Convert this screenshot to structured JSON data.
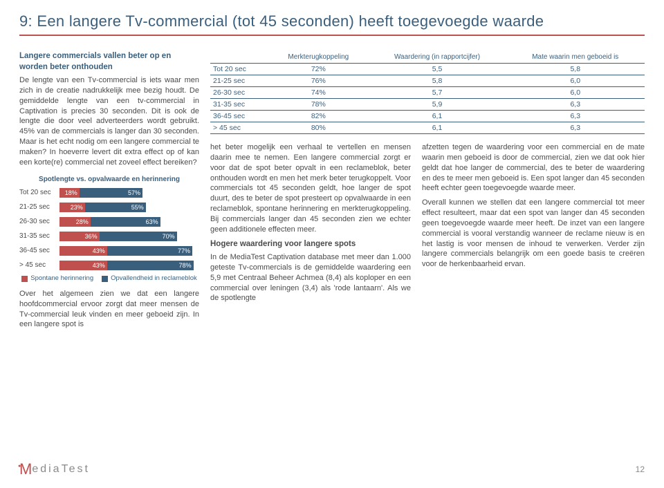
{
  "page": {
    "title": "9: Een langere Tv-commercial (tot 45 seconden) heeft toegevoegde waarde",
    "number": "12"
  },
  "logo": {
    "m": "M",
    "rest": "ediaTest"
  },
  "left": {
    "subhead": "Langere commercials vallen beter op en worden beter onthouden",
    "p1": "De lengte van een Tv-commercial is iets waar men zich in de creatie nadrukkelijk mee bezig houdt. De gemiddelde lengte van een tv-commercial in Captivation is precies 30 seconden. Dit is ook de lengte die door veel adverteerders wordt gebruikt. 45% van de commercials is langer dan 30 seconden. Maar is het echt nodig om een langere commercial te maken? In hoeverre levert dit extra effect op of kan een korte(re) commercial net zoveel effect bereiken?",
    "p2": "Over het algemeen zien we dat een langere hoofdcommercial ervoor zorgt dat meer mensen de Tv-commercial leuk vinden en meer geboeid zijn. In een langere spot is"
  },
  "chart": {
    "title": "Spotlengte vs. opvalwaarde en herinnering",
    "series1_color": "#c0504d",
    "series2_color": "#3a5f7d",
    "max": 100,
    "legend1": "Spontane herinnering",
    "legend2": "Opvallendheid in reclameblok",
    "rows": [
      {
        "cat": "Tot 20 sec",
        "v1": 18,
        "v2": 57
      },
      {
        "cat": "21-25 sec",
        "v1": 23,
        "v2": 55
      },
      {
        "cat": "26-30 sec",
        "v1": 28,
        "v2": 63
      },
      {
        "cat": "31-35 sec",
        "v1": 36,
        "v2": 70
      },
      {
        "cat": "36-45 sec",
        "v1": 43,
        "v2": 77
      },
      {
        "cat": "> 45 sec",
        "v1": 43,
        "v2": 78
      }
    ]
  },
  "table": {
    "headers": [
      "",
      "Merkterugkoppeling",
      "Waardering (in rapportcijfer)",
      "Mate waarin men geboeid is"
    ],
    "rows": [
      [
        "Tot 20 sec",
        "72%",
        "5,5",
        "5,8"
      ],
      [
        "21-25 sec",
        "76%",
        "5,8",
        "6,0"
      ],
      [
        "26-30 sec",
        "74%",
        "5,7",
        "6,0"
      ],
      [
        "31-35 sec",
        "78%",
        "5,9",
        "6,3"
      ],
      [
        "36-45 sec",
        "82%",
        "6,1",
        "6,3"
      ],
      [
        "> 45 sec",
        "80%",
        "6,1",
        "6,3"
      ]
    ]
  },
  "mid": {
    "p1": "het beter mogelijk een verhaal te vertellen en mensen daarin mee te nemen. Een langere commercial zorgt er voor dat de spot beter opvalt in een reclameblok, beter onthouden wordt en men het merk beter terugkoppelt. Voor commercials tot 45 seconden geldt, hoe langer de spot duurt, des te beter de spot presteert op opvalwaarde in een reclameblok, spontane herinnering en merkterugkoppeling. Bij commercials langer dan 45 seconden zien we echter geen additionele effecten meer.",
    "subhead": "Hogere waardering voor langere spots",
    "p2": "In de MediaTest Captivation database met meer dan 1.000 geteste Tv-commercials is de gemiddelde waardering een 5,9 met Centraal Beheer Achmea (8,4) als koploper en een commercial over leningen (3,4) als 'rode lantaarn'. Als we de spotlengte"
  },
  "right": {
    "p1": "afzetten tegen de waardering voor een commercial en de mate waarin men geboeid is door de commercial, zien we dat ook hier geldt dat hoe langer de commercial, des te beter de waardering en des te meer men geboeid is. Een spot langer dan 45 seconden heeft echter geen toegevoegde waarde meer.",
    "p2": "Overall kunnen we stellen dat een langere commercial tot meer effect resulteert, maar dat een spot van langer dan 45 seconden geen toegevoegde waarde meer heeft. De inzet van een langere commercial is vooral verstandig wanneer de reclame nieuw is en het lastig is voor mensen de inhoud te verwerken. Verder zijn langere commercials belangrijk om een goede basis te creëren voor de herkenbaarheid ervan."
  }
}
